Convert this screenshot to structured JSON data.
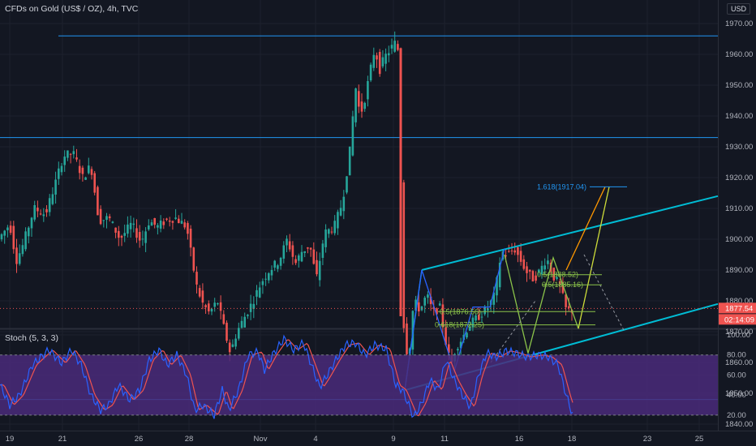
{
  "header": {
    "title": "CFDs on Gold (US$ / OZ), 4h, TVC",
    "currency": "USD"
  },
  "price_badges": {
    "last_price": "1877.54",
    "countdown": "02:14:09",
    "last_price_color": "#ef5350"
  },
  "stoch_panel": {
    "title": "Stoch (5, 3, 3)",
    "fill_color": "#4a2a7a",
    "k_color": "#2962ff",
    "d_color": "#ef5350"
  },
  "annotations": {
    "fib_top": "1.618(1917.04)",
    "fib_a": "0.5(1888.52)",
    "fib_b": "0.5(1885.16)",
    "fib_c": "0.5(1876.56)",
    "fib_d": "0.618(1872.25)"
  },
  "chart_data": [
    {
      "type": "candlestick",
      "x_ticks": [
        "19",
        "21",
        "26",
        "28",
        "Nov",
        "4",
        "9",
        "11",
        "16",
        "18",
        "23",
        "25"
      ],
      "y_ticks": [
        "1970.00",
        "1960.00",
        "1950.00",
        "1940.00",
        "1930.00",
        "1920.00",
        "1910.00",
        "1900.00",
        "1890.00",
        "1880.00",
        "1870.00",
        "1860.00",
        "1850.00",
        "1840.00"
      ],
      "ylim": [
        1838,
        1974
      ],
      "horizontal_levels": [
        1966,
        1933,
        1848
      ],
      "channel_upper": [
        [
          1890,
          1914
        ]
      ],
      "channel_lower": [
        [
          1851,
          1879
        ]
      ],
      "colors": {
        "up": "#26a69a",
        "down": "#ef5350",
        "channel": "#00bcd4",
        "levels": "#2196f3"
      }
    },
    {
      "type": "line",
      "y_ticks": [
        "100.00",
        "80.00",
        "60.00",
        "40.00",
        "20.00"
      ],
      "ylim": [
        13,
        100
      ],
      "levels": [
        80,
        20
      ]
    }
  ]
}
